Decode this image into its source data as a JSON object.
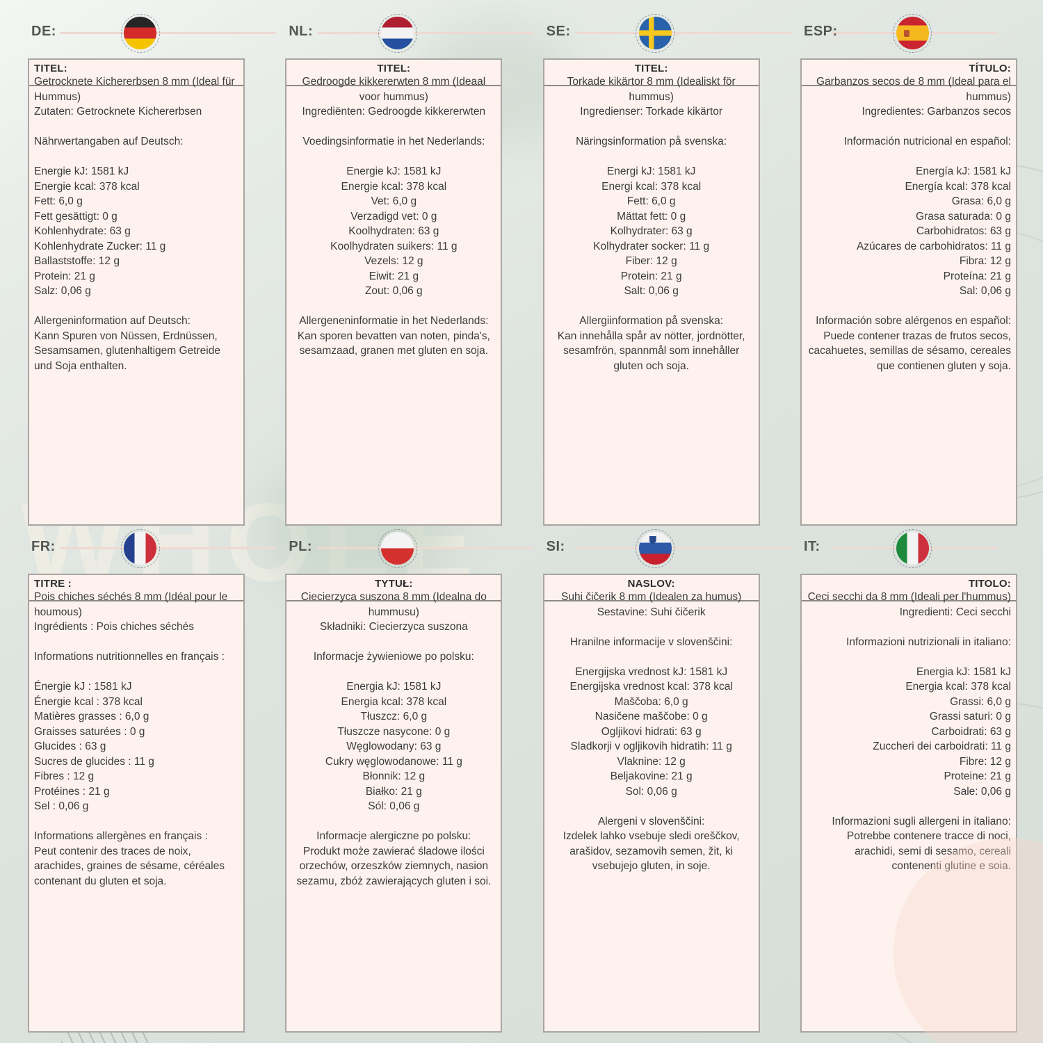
{
  "page": {
    "watermark": "WHOLE",
    "background_color": "#dce2dc",
    "card_background": "#fdf2ee",
    "header_line_color": "#eed9d2",
    "text_color": "#3c3c3c"
  },
  "cards": [
    {
      "code": "DE:",
      "flag": "germany",
      "align": "left",
      "title_label": "TITEL:",
      "title": "Getrocknete Kichererbsen 8 mm (Ideal für Hummus)",
      "ingredients": "Zutaten: Getrocknete Kichererbsen",
      "nutrition_heading": "Nährwertangaben auf Deutsch:",
      "nutrition": [
        "Energie kJ: 1581 kJ",
        "Energie kcal: 378 kcal",
        "Fett: 6,0 g",
        "Fett gesättigt: 0 g",
        "Kohlenhydrate: 63 g",
        "Kohlenhydrate Zucker: 11 g",
        "Ballaststoffe: 12 g",
        "Protein: 21 g",
        "Salz: 0,06 g"
      ],
      "allergen_heading": "Allergeninformation auf Deutsch:",
      "allergen_text": "Kann Spuren von Nüssen, Erdnüssen, Sesamsamen, glutenhaltigem Getreide und Soja enthalten."
    },
    {
      "code": "NL:",
      "flag": "netherlands",
      "align": "center",
      "title_label": "TITEL:",
      "title": "Gedroogde kikkererwten 8 mm (Ideaal voor hummus)",
      "ingredients": "Ingrediënten: Gedroogde kikkererwten",
      "nutrition_heading": "Voedingsinformatie in het Nederlands:",
      "nutrition": [
        "Energie kJ: 1581 kJ",
        "Energie kcal: 378 kcal",
        "Vet: 6,0 g",
        "Verzadigd vet: 0 g",
        "Koolhydraten: 63 g",
        "Koolhydraten suikers: 11 g",
        "Vezels: 12 g",
        "Eiwit: 21 g",
        "Zout: 0,06 g"
      ],
      "allergen_heading": "Allergeneninformatie in het Nederlands:",
      "allergen_text": "Kan sporen bevatten van noten, pinda's, sesamzaad, granen met gluten en soja."
    },
    {
      "code": "SE:",
      "flag": "sweden",
      "align": "center",
      "title_label": "TITEL:",
      "title": "Torkade kikärtor 8 mm (Idealiskt för hummus)",
      "ingredients": "Ingredienser: Torkade kikärtor",
      "nutrition_heading": "Näringsinformation på svenska:",
      "nutrition": [
        "Energi kJ: 1581 kJ",
        "Energi kcal: 378 kcal",
        "Fett: 6,0 g",
        "Mättat fett: 0 g",
        "Kolhydrater: 63 g",
        "Kolhydrater socker: 11 g",
        "Fiber: 12 g",
        "Protein: 21 g",
        "Salt: 0,06 g"
      ],
      "allergen_heading": "Allergiinformation på svenska:",
      "allergen_text": "Kan innehålla spår av nötter, jordnötter, sesamfrön, spannmål som innehåller gluten och soja."
    },
    {
      "code": "ESP:",
      "flag": "spain",
      "align": "right",
      "title_label": "TÍTULO:",
      "title": "Garbanzos secos de 8 mm (Ideal para el hummus)",
      "ingredients": "Ingredientes: Garbanzos secos",
      "nutrition_heading": "Información nutricional en español:",
      "nutrition": [
        "Energía kJ: 1581 kJ",
        "Energía kcal: 378 kcal",
        "Grasa: 6,0 g",
        "Grasa saturada: 0 g",
        "Carbohidratos: 63 g",
        "Azúcares de carbohidratos: 11 g",
        "Fibra: 12 g",
        "Proteína: 21 g",
        "Sal: 0,06 g"
      ],
      "allergen_heading": "Información sobre alérgenos en español:",
      "allergen_text": "Puede contener trazas de frutos secos, cacahuetes, semillas de sésamo, cereales que contienen gluten y soja."
    },
    {
      "code": "FR:",
      "flag": "france",
      "align": "left",
      "title_label": "TITRE :",
      "title": "Pois chiches séchés 8 mm (Idéal pour le houmous)",
      "ingredients": "Ingrédients : Pois chiches séchés",
      "nutrition_heading": "Informations nutritionnelles en français :",
      "nutrition": [
        "Énergie kJ : 1581 kJ",
        "Énergie kcal : 378 kcal",
        "Matières grasses : 6,0 g",
        "Graisses saturées : 0 g",
        "Glucides : 63 g",
        "Sucres de glucides : 11 g",
        "Fibres : 12 g",
        "Protéines : 21 g",
        "Sel : 0,06 g"
      ],
      "allergen_heading": "Informations allergènes en français :",
      "allergen_text": "Peut contenir des traces de noix, arachides, graines de sésame, céréales contenant du gluten et soja."
    },
    {
      "code": "PL:",
      "flag": "poland",
      "align": "center",
      "title_label": "TYTUŁ:",
      "title": "Ciecierzyca suszona 8 mm (Idealna do hummusu)",
      "ingredients": "Składniki: Ciecierzyca suszona",
      "nutrition_heading": "Informacje żywieniowe po polsku:",
      "nutrition": [
        "Energia kJ: 1581 kJ",
        "Energia kcal: 378 kcal",
        "Tłuszcz: 6,0 g",
        "Tłuszcze nasycone: 0 g",
        "Węglowodany: 63 g",
        "Cukry węglowodanowe: 11 g",
        "Błonnik: 12 g",
        "Białko: 21 g",
        "Sól: 0,06 g"
      ],
      "allergen_heading": "Informacje alergiczne po polsku:",
      "allergen_text": "Produkt może zawierać śladowe ilości orzechów, orzeszków ziemnych, nasion sezamu, zbóż zawierających gluten i soi."
    },
    {
      "code": "SI:",
      "flag": "slovenia",
      "align": "center",
      "title_label": "NASLOV:",
      "title": "Suhi čičerik 8 mm (Idealen za humus)",
      "ingredients": "Sestavine: Suhi čičerik",
      "nutrition_heading": "Hranilne informacije v slovenščini:",
      "nutrition": [
        "Energijska vrednost kJ: 1581 kJ",
        "Energijska vrednost kcal: 378 kcal",
        "Maščoba: 6,0 g",
        "Nasičene maščobe: 0 g",
        "Ogljikovi hidrati: 63 g",
        "Sladkorji v ogljikovih hidratih: 11 g",
        "Vlaknine: 12 g",
        "Beljakovine: 21 g",
        "Sol: 0,06 g"
      ],
      "allergen_heading": "Alergeni v slovenščini:",
      "allergen_text": "Izdelek lahko vsebuje sledi oreščkov, arašidov, sezamovih semen, žit, ki vsebujejo gluten, in soje."
    },
    {
      "code": "IT:",
      "flag": "italy",
      "align": "right",
      "title_label": "TITOLO:",
      "title": "Ceci secchi da 8 mm (Ideali per l'hummus)",
      "ingredients": "Ingredienti: Ceci secchi",
      "nutrition_heading": "Informazioni nutrizionali in italiano:",
      "nutrition": [
        "Energia kJ: 1581 kJ",
        "Energia kcal: 378 kcal",
        "Grassi: 6,0 g",
        "Grassi saturi: 0 g",
        "Carboidrati: 63 g",
        "Zuccheri dei carboidrati: 11 g",
        "Fibre: 12 g",
        "Proteine: 21 g",
        "Sale: 0,06 g"
      ],
      "allergen_heading": "Informazioni sugli allergeni in italiano:",
      "allergen_text": "Potrebbe contenere tracce di noci, arachidi, semi di sesamo, cereali contenenti glutine e soia."
    }
  ]
}
